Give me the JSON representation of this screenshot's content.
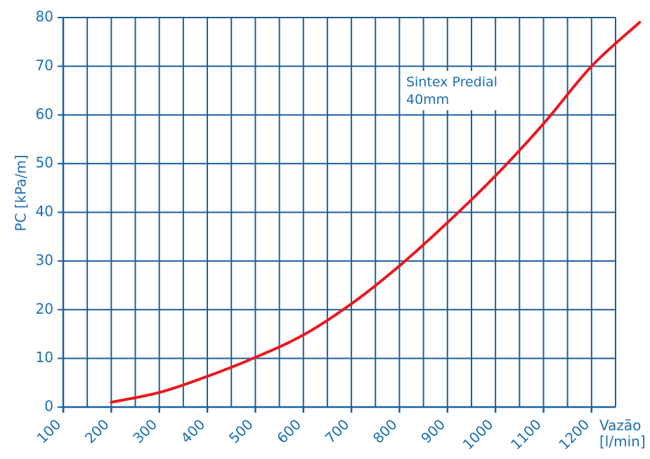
{
  "chart_data": {
    "type": "line",
    "title": "",
    "ylabel": "PC [kPa/m]",
    "xlabel": "Vazão\n[l/min]",
    "xlabel_line1": "Vazão",
    "xlabel_line2": "[l/min]",
    "ylim": [
      0,
      80
    ],
    "xlim": [
      100,
      1200
    ],
    "x_ticks": [
      "100",
      "200",
      "300",
      "400",
      "500",
      "600",
      "700",
      "800",
      "900",
      "1000",
      "1100",
      "1200"
    ],
    "y_ticks": [
      "0",
      "10",
      "20",
      "30",
      "40",
      "50",
      "60",
      "70",
      "80"
    ],
    "grid": true,
    "annotation": {
      "line1": "Sintex Predial",
      "line2": "40mm"
    },
    "series": [
      {
        "color": "#e8191e",
        "x": [
          200,
          300,
          400,
          500,
          600,
          700,
          800,
          900,
          1000,
          1100,
          1200,
          1300
        ],
        "y": [
          1,
          3,
          6.3,
          10.2,
          14.8,
          21.2,
          29,
          37.9,
          47.5,
          58.2,
          70,
          79
        ]
      }
    ]
  }
}
